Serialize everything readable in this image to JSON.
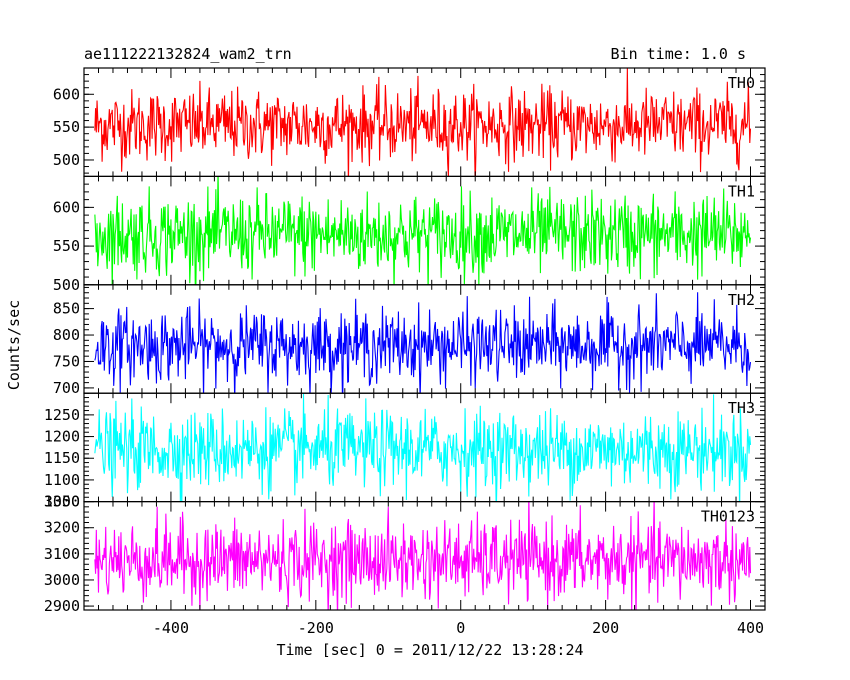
{
  "header": {
    "left": "ae111222132824_wam2_trn",
    "right": "Bin time: 1.0 s"
  },
  "chart_data": {
    "type": "line",
    "title": "ae111222132824_wam2_trn",
    "subtitle": "Bin time: 1.0 s",
    "xlabel": "Time [sec] 0 = 2011/12/22 13:28:24",
    "ylabel": "Counts/sec",
    "xlim": [
      -520,
      420
    ],
    "x_ticks": [
      -400,
      -200,
      0,
      200,
      400
    ],
    "x_range": [
      -505,
      400
    ],
    "bin_time": 1.0,
    "grid": false,
    "panels": [
      {
        "name": "TH0",
        "color": "#ff0000",
        "ylim": [
          475,
          640
        ],
        "y_ticks": [
          500,
          550,
          600
        ],
        "mean": 553,
        "sigma": 27
      },
      {
        "name": "TH1",
        "color": "#00ff00",
        "ylim": [
          500,
          640
        ],
        "y_ticks": [
          500,
          550,
          600
        ],
        "mean": 565,
        "sigma": 26
      },
      {
        "name": "TH2",
        "color": "#0000ff",
        "ylim": [
          690,
          895
        ],
        "y_ticks": [
          700,
          750,
          800,
          850
        ],
        "mean": 780,
        "sigma": 34
      },
      {
        "name": "TH3",
        "color": "#00ffff",
        "ylim": [
          1050,
          1300
        ],
        "y_ticks": [
          1050,
          1100,
          1150,
          1200,
          1250
        ],
        "mean": 1170,
        "sigma": 45
      },
      {
        "name": "TH0123",
        "color": "#ff00ff",
        "ylim": [
          2885,
          3300
        ],
        "y_ticks": [
          2900,
          3000,
          3100,
          3200,
          3300
        ],
        "mean": 3075,
        "sigma": 75
      }
    ]
  }
}
